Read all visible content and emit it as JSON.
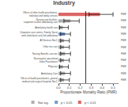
{
  "chart_data": {
    "type": "bar",
    "orientation": "horizontal",
    "title": "Industry",
    "xlabel": "Proportionate Mortality Ratio (PMR)",
    "categories": [
      "Offices of health practitioners, general medical and surgical hospitals NecC",
      "Ambulatory Care",
      "Physician",
      "Nursing plus specialized Index Practitioners",
      "Nursing Benefits care nec",
      "Other nec care",
      "All Services NecC",
      "Outpatient care centers, Family, Social work (Individual care) Ind ambulatory",
      "Ambulatory health care",
      "Nursing care facilities, outpatient & other ambulatory care",
      "Offices of other health practitioners, individual and family services"
    ],
    "values": [
      0.05,
      0.06,
      0.04,
      0.05,
      0.06,
      0.05,
      0.05,
      0.06,
      0.04,
      0.11,
      0.38
    ],
    "ci_low": [
      0.02,
      0.02,
      0.01,
      0.02,
      0.02,
      0.02,
      0.02,
      0.02,
      0.01,
      0.05,
      0.28
    ],
    "ci_high": [
      0.1,
      0.11,
      0.09,
      0.1,
      0.11,
      0.1,
      0.1,
      0.11,
      0.09,
      0.19,
      0.5
    ],
    "colors": [
      "#b0b0b0",
      "#b0b0b0",
      "#b0b0b0",
      "#b0b0b0",
      "#b0b0b0",
      "#b0b0b0",
      "#b0b0b0",
      "#7799cc",
      "#b0b0b0",
      "#b0b0b0",
      "#dd6666"
    ],
    "reference_line": 0.25,
    "annotations": [
      "PMR",
      "PMR",
      "PMR",
      "PMR",
      "PMR",
      "PMR",
      "PMR",
      "PMR",
      "PMR",
      "PMR",
      "PMR"
    ],
    "legend": "bottom",
    "legend_items": [
      {
        "label": "Not sig.",
        "color": "#b0b0b0"
      },
      {
        "label": "p < 0.05",
        "color": "#7799cc"
      },
      {
        "label": "p < 0.01",
        "color": "#dd6666"
      }
    ],
    "xlim": [
      0.0,
      0.55
    ],
    "xticks": [
      {
        "value": 0.0,
        "label": "0.0"
      },
      0.1,
      0.2,
      0.3,
      0.4,
      0.5
    ],
    "grid": false
  }
}
